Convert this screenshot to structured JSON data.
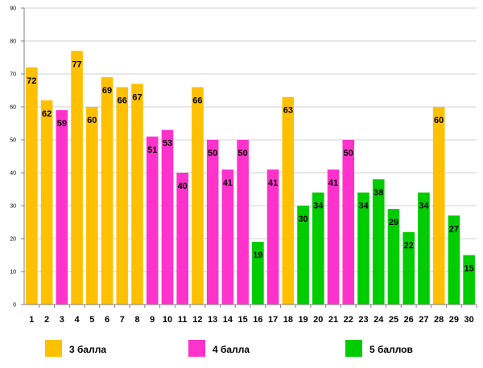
{
  "chart_data": {
    "type": "bar",
    "title": "",
    "xlabel": "",
    "ylabel": "",
    "ylim": [
      0,
      90
    ],
    "yticks": [
      0,
      10,
      20,
      30,
      40,
      50,
      60,
      70,
      80,
      90
    ],
    "grid": true,
    "categories": [
      "1",
      "2",
      "3",
      "4",
      "5",
      "6",
      "7",
      "8",
      "9",
      "10",
      "11",
      "12",
      "13",
      "14",
      "15",
      "16",
      "17",
      "18",
      "19",
      "20",
      "21",
      "22",
      "23",
      "24",
      "25",
      "26",
      "27",
      "28",
      "29",
      "30"
    ],
    "values": [
      72,
      62,
      59,
      77,
      60,
      69,
      66,
      67,
      51,
      53,
      40,
      66,
      50,
      41,
      50,
      19,
      41,
      63,
      30,
      34,
      41,
      50,
      34,
      38,
      29,
      22,
      34,
      60,
      27,
      15
    ],
    "groups": [
      1,
      1,
      2,
      1,
      1,
      1,
      1,
      1,
      2,
      2,
      2,
      1,
      2,
      2,
      2,
      3,
      2,
      1,
      3,
      3,
      2,
      2,
      3,
      3,
      3,
      3,
      3,
      1,
      3,
      3
    ],
    "legend": [
      {
        "id": 1,
        "label": "3 балла",
        "color": "#FFC000"
      },
      {
        "id": 2,
        "label": "4 балла",
        "color": "#FF33CC"
      },
      {
        "id": 3,
        "label": "5 баллов",
        "color": "#00CC00"
      }
    ],
    "legend_position": "bottom"
  }
}
